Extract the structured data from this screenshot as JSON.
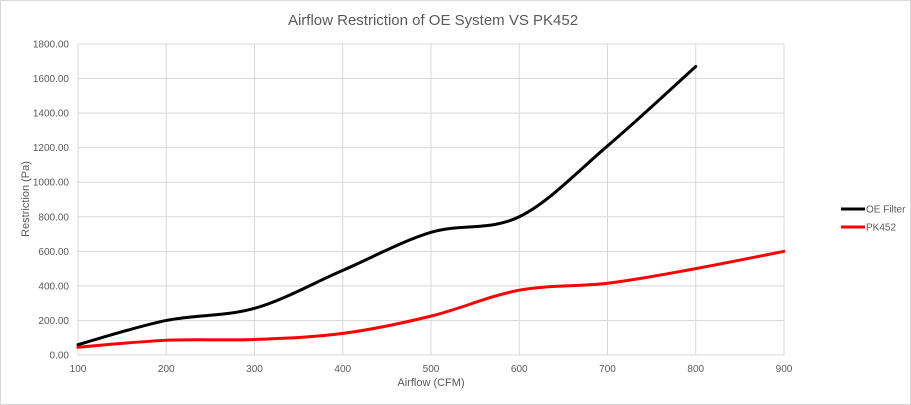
{
  "chart_data": {
    "type": "line",
    "title": "Airflow Restriction of OE System VS PK452",
    "xlabel": "Airflow (CFM)",
    "ylabel": "Restriction (Pa)",
    "xlim": [
      100,
      900
    ],
    "ylim": [
      0,
      1800
    ],
    "x_ticks": [
      "100",
      "200",
      "300",
      "400",
      "500",
      "600",
      "700",
      "800",
      "900"
    ],
    "y_ticks": [
      "0.00",
      "200.00",
      "400.00",
      "600.00",
      "800.00",
      "1000.00",
      "1200.00",
      "1400.00",
      "1600.00",
      "1800.00"
    ],
    "grid": "vertical and horizontal",
    "legend_position": "right",
    "series": [
      {
        "name": "OE Filter",
        "color": "#000000",
        "x": [
          100,
          200,
          300,
          400,
          500,
          600,
          700,
          800
        ],
        "values": [
          60,
          200,
          270,
          490,
          710,
          800,
          1210,
          1670
        ]
      },
      {
        "name": "PK452",
        "color": "#ff0000",
        "x": [
          100,
          200,
          300,
          400,
          500,
          600,
          700,
          800,
          900
        ],
        "values": [
          45,
          85,
          90,
          125,
          225,
          375,
          415,
          500,
          600
        ]
      }
    ]
  }
}
